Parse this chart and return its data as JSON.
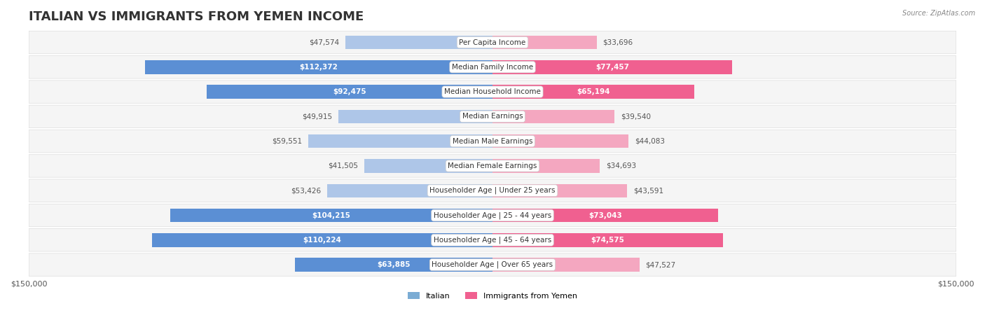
{
  "title": "ITALIAN VS IMMIGRANTS FROM YEMEN INCOME",
  "source": "Source: ZipAtlas.com",
  "categories": [
    "Per Capita Income",
    "Median Family Income",
    "Median Household Income",
    "Median Earnings",
    "Median Male Earnings",
    "Median Female Earnings",
    "Householder Age | Under 25 years",
    "Householder Age | 25 - 44 years",
    "Householder Age | 45 - 64 years",
    "Householder Age | Over 65 years"
  ],
  "italian_values": [
    47574,
    112372,
    92475,
    49915,
    59551,
    41505,
    53426,
    104215,
    110224,
    63885
  ],
  "yemen_values": [
    33696,
    77457,
    65194,
    39540,
    44083,
    34693,
    43591,
    73043,
    74575,
    47527
  ],
  "italian_labels": [
    "$47,574",
    "$112,372",
    "$92,475",
    "$49,915",
    "$59,551",
    "$41,505",
    "$53,426",
    "$104,215",
    "$110,224",
    "$63,885"
  ],
  "yemen_labels": [
    "$33,696",
    "$77,457",
    "$65,194",
    "$39,540",
    "$44,083",
    "$34,693",
    "$43,591",
    "$73,043",
    "$74,575",
    "$47,527"
  ],
  "max_value": 150000,
  "italian_color_light": "#aec6e8",
  "italian_color_dark": "#5b8fd4",
  "yemen_color_light": "#f4a7c0",
  "yemen_color_dark": "#f06090",
  "row_bg_color": "#f5f5f5",
  "row_border_color": "#dddddd",
  "legend_italian_color": "#7bacd4",
  "legend_yemen_color": "#f06090",
  "background_color": "#ffffff",
  "title_fontsize": 13,
  "label_fontsize": 7.5,
  "category_fontsize": 7.5,
  "axis_label_fontsize": 8
}
